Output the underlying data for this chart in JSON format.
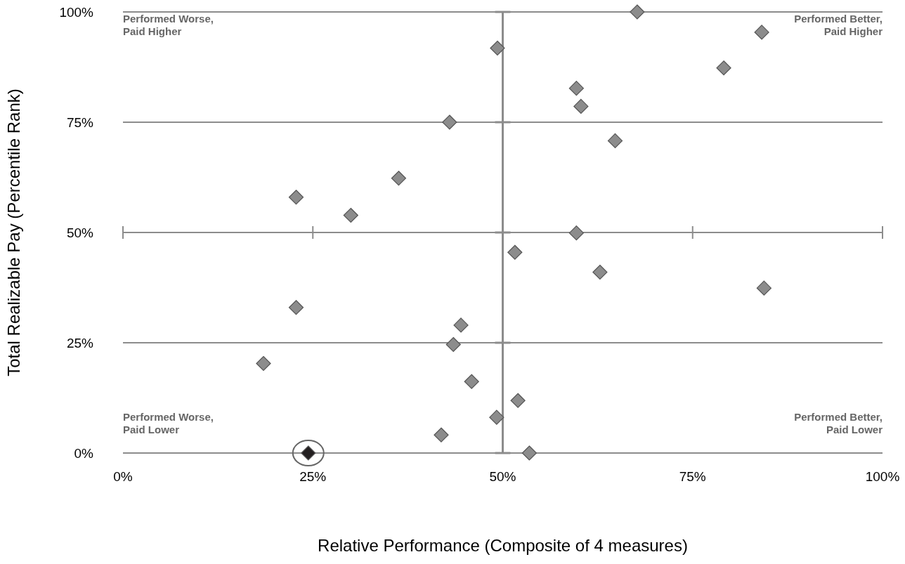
{
  "chart_data": {
    "type": "scatter",
    "xlabel": "Relative Performance (Composite of 4 measures)",
    "ylabel": "Total Realizable Pay (Percentile Rank)",
    "xlim": [
      0,
      100
    ],
    "ylim": [
      0,
      100
    ],
    "xticks": [
      {
        "value": 0,
        "label": "0%"
      },
      {
        "value": 25,
        "label": "25%"
      },
      {
        "value": 50,
        "label": "50%"
      },
      {
        "value": 75,
        "label": "75%"
      },
      {
        "value": 100,
        "label": "100%"
      }
    ],
    "yticks": [
      {
        "value": 0,
        "label": "0%"
      },
      {
        "value": 25,
        "label": "25%"
      },
      {
        "value": 50,
        "label": "50%"
      },
      {
        "value": 75,
        "label": "75%"
      },
      {
        "value": 100,
        "label": "100%"
      }
    ],
    "grid": "y",
    "marker": "diamond",
    "ref_lines": [
      {
        "axis": "x",
        "value": 50,
        "color": "#8c8c8c"
      }
    ],
    "annotations": [
      "Performed Worse,\nPaid Higher",
      "Performed Better,\nPaid Higher",
      "Performed Worse,\nPaid Lower",
      "Performed Better,\nPaid Lower"
    ],
    "series": [
      {
        "color": "#8c8c8c",
        "x": [
          67.7,
          84.1,
          49.3,
          79.1,
          59.7,
          60.3,
          43.0,
          64.8,
          36.3,
          22.8,
          30.0,
          59.7,
          51.6,
          62.8,
          84.4,
          22.8,
          44.5,
          43.5,
          18.5,
          45.9,
          52.0,
          49.2,
          41.9,
          53.5
        ],
        "values": [
          100,
          95.4,
          91.8,
          87.3,
          82.7,
          78.6,
          75.0,
          70.8,
          62.3,
          58.0,
          53.9,
          49.9,
          45.5,
          41.0,
          37.4,
          33.0,
          29.0,
          24.6,
          20.3,
          16.2,
          11.9,
          8.1,
          4.1,
          0
        ]
      },
      {
        "color": "#231f20",
        "x": [
          24.4
        ],
        "values": [
          0
        ]
      }
    ]
  }
}
